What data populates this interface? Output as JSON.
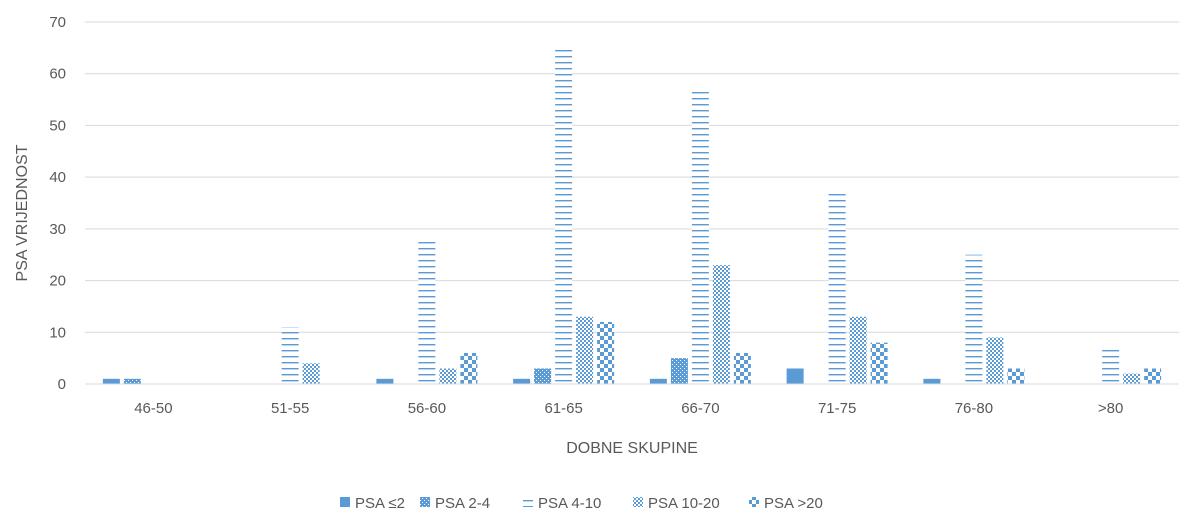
{
  "chart_data": {
    "type": "bar",
    "title": "",
    "xlabel": "DOBNE SKUPINE",
    "ylabel": "PSA VRIJEDNOST",
    "ylim": [
      0,
      70
    ],
    "ytick_step": 10,
    "grid": true,
    "legend_position": "bottom",
    "bar_color": "#5B9BD5",
    "categories": [
      "46-50",
      "51-55",
      "56-60",
      "61-65",
      "66-70",
      "71-75",
      "76-80",
      ">80"
    ],
    "series": [
      {
        "name": "PSA ≤2",
        "pattern": "solid",
        "values": [
          1,
          0,
          1,
          1,
          1,
          3,
          1,
          0
        ]
      },
      {
        "name": "PSA 2-4",
        "pattern": "dots",
        "values": [
          1,
          0,
          0,
          3,
          5,
          0,
          0,
          0
        ]
      },
      {
        "name": "PSA 4-10",
        "pattern": "horizontal-lines",
        "values": [
          0,
          11,
          28,
          65,
          57,
          37,
          25,
          7
        ]
      },
      {
        "name": "PSA 10-20",
        "pattern": "diamond-grid",
        "values": [
          0,
          4,
          3,
          13,
          23,
          13,
          9,
          2
        ]
      },
      {
        "name": "PSA >20",
        "pattern": "checker",
        "values": [
          0,
          0,
          6,
          12,
          6,
          8,
          3,
          3
        ]
      }
    ]
  }
}
